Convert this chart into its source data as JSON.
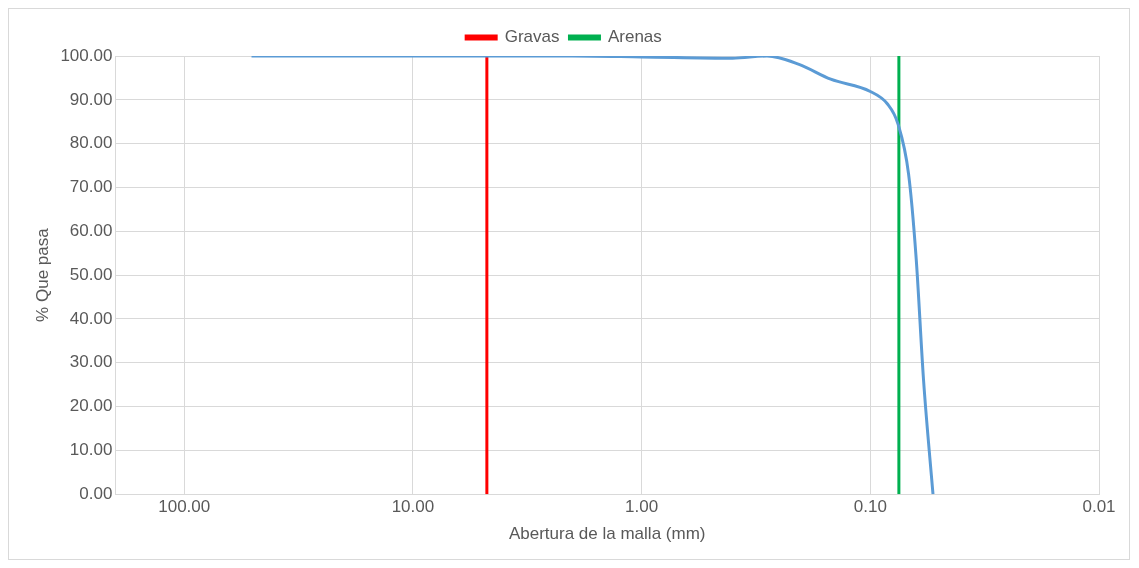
{
  "chart_data": {
    "type": "line",
    "xlabel": "Abertura de la malla (mm)",
    "ylabel": "% Que pasa",
    "x": [
      50.8,
      4.75,
      2,
      1,
      0.4,
      0.283,
      0.205,
      0.149,
      0.1,
      0.0843,
      0.0757,
      0.068,
      0.063,
      0.0585,
      0.0532
    ],
    "series": [
      {
        "color": "#5b9bd5",
        "values": [
          100,
          100,
          100,
          99.8,
          99.5,
          100,
          98.1,
          94.7,
          91.9,
          89.1,
          84.5,
          73,
          53.7,
          26,
          0
        ]
      }
    ],
    "xlim": [
      200,
      0.01
    ],
    "xticks": [
      {
        "value": 100,
        "label": "100.00"
      },
      {
        "value": 10,
        "label": "10.00"
      },
      {
        "value": 1,
        "label": "1.00"
      },
      {
        "value": 0.1,
        "label": "0.10"
      },
      0.01
    ],
    "ylim": [
      0,
      100
    ],
    "yticks": [
      {
        "value": 0,
        "label": "0.00"
      },
      {
        "value": 10,
        "label": "10.00"
      },
      {
        "value": 20,
        "label": "20.00"
      },
      {
        "value": 30,
        "label": "30.00"
      },
      {
        "value": 40,
        "label": "40.00"
      },
      {
        "value": 50,
        "label": "50.00"
      },
      {
        "value": 60,
        "label": "60.00"
      },
      {
        "value": 70,
        "label": "70.00"
      },
      {
        "value": 80,
        "label": "80.00"
      },
      {
        "value": 90,
        "label": "90.00"
      },
      {
        "value": 100,
        "label": "100.00"
      }
    ],
    "ref_lines": [
      {
        "axis": "x",
        "value": 4.75,
        "label": "Gravas",
        "color": "#ff0000"
      },
      {
        "axis": "x",
        "value": 0.075,
        "label": "Arenas",
        "color": "#00b050"
      }
    ],
    "log": "x",
    "grid": true,
    "legend": "top",
    "marker": "none"
  }
}
